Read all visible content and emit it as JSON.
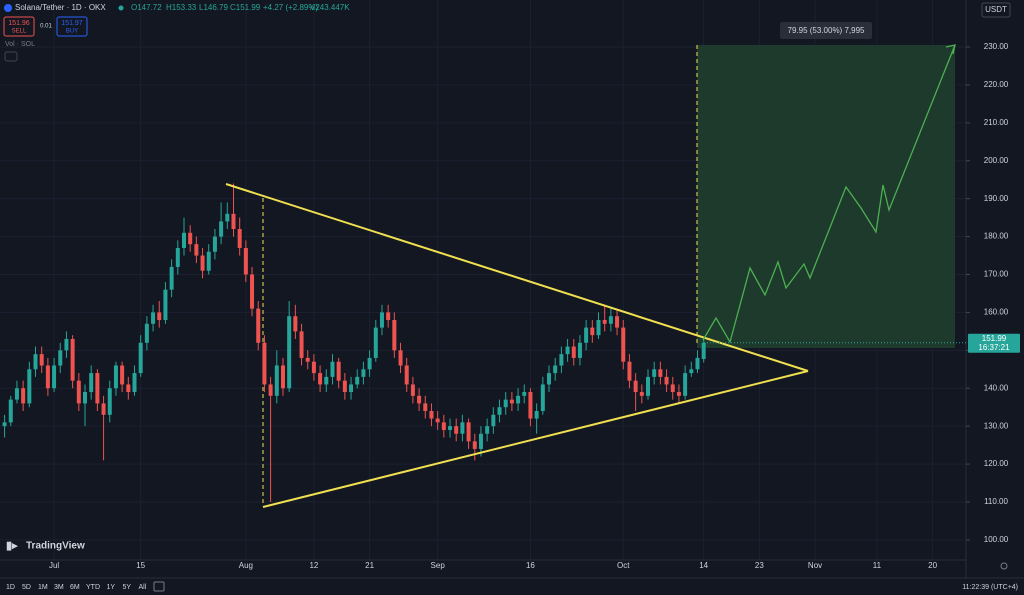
{
  "header": {
    "symbol": "Solana/Tether · 1D · OKX",
    "open": "O147.72",
    "high": "H153.33",
    "low": "L146.79",
    "close": "C151.99",
    "change": "+4.27 (+2.89%)",
    "volume": "V243.447K",
    "sell_price": "151.96",
    "sell": "SELL",
    "spread": "0.01",
    "buy_price": "151.97",
    "buy": "BUY",
    "indicator": "Vol · SOL",
    "currency": "USDT"
  },
  "annotation": {
    "measure": "79.95 (53.00%) 7,995"
  },
  "branding": "TradingView",
  "toolbar": {
    "ranges": [
      "1D",
      "5D",
      "1M",
      "3M",
      "6M",
      "YTD",
      "1Y",
      "5Y",
      "All"
    ],
    "clock": "11:22:39 (UTC+4)"
  },
  "chart_data": {
    "type": "candlestick",
    "up_color": "#26a69a",
    "down_color": "#ef5350",
    "x": [
      -8,
      -7,
      -6,
      -5,
      -4,
      -3,
      -2,
      -1,
      0,
      1,
      2,
      3,
      4,
      5,
      6,
      7,
      8,
      9,
      10,
      11,
      12,
      13,
      14,
      15,
      16,
      17,
      18,
      19,
      20,
      21,
      22,
      23,
      24,
      25,
      26,
      27,
      28,
      29,
      30,
      31,
      32,
      33,
      34,
      35,
      36,
      37,
      38,
      39,
      40,
      41,
      42,
      43,
      44,
      45,
      46,
      47,
      48,
      49,
      50,
      51,
      52,
      53,
      54,
      55,
      56,
      57,
      58,
      59,
      60,
      61,
      62,
      63,
      64,
      65,
      66,
      67,
      68,
      69,
      70,
      71,
      72,
      73,
      74,
      75,
      76,
      77,
      78,
      79,
      80,
      81,
      82,
      83,
      84,
      85,
      86,
      87,
      88,
      89,
      90,
      91,
      92,
      93,
      94,
      95,
      96,
      97,
      98,
      99,
      100,
      101,
      102,
      103,
      104,
      105
    ],
    "open": [
      130,
      131,
      137,
      140,
      136,
      145,
      149,
      146,
      140,
      146,
      150,
      153,
      142,
      136,
      139,
      144,
      136,
      133,
      140,
      146,
      141,
      139,
      144,
      152,
      157,
      160,
      158,
      166,
      172,
      177,
      181,
      178,
      175,
      171,
      176,
      180,
      184,
      186,
      182,
      177,
      170,
      161,
      152,
      141,
      138,
      146,
      140,
      159,
      155,
      148,
      147,
      144,
      141,
      143,
      147,
      142,
      139,
      141,
      143,
      145,
      148,
      156,
      160,
      158,
      150,
      146,
      141,
      138,
      136,
      134,
      132,
      131,
      129,
      130,
      128,
      131,
      126,
      124,
      128,
      130,
      133,
      135,
      137,
      136,
      138,
      139,
      132,
      134,
      141,
      144,
      146,
      149,
      151,
      148,
      152,
      156,
      154,
      158,
      157,
      159,
      156,
      147,
      142,
      139,
      138,
      143,
      145,
      143,
      141,
      139,
      138,
      144,
      145,
      147.72
    ],
    "high": [
      133,
      138,
      142,
      142,
      147,
      151,
      151,
      148,
      148,
      152,
      155,
      154,
      144,
      141,
      146,
      145,
      138,
      142,
      147,
      147,
      143,
      146,
      154,
      159,
      162,
      163,
      168,
      174,
      179,
      185,
      183,
      180,
      177,
      178,
      182,
      189,
      189,
      194,
      185,
      179,
      172,
      163,
      154,
      143,
      150,
      148,
      163,
      162,
      157,
      150,
      149,
      146,
      145,
      149,
      148,
      144,
      143,
      145,
      147,
      150,
      158,
      162,
      162,
      160,
      152,
      148,
      143,
      140,
      138,
      136,
      134,
      133,
      132,
      132,
      133,
      132,
      128,
      130,
      132,
      135,
      137,
      139,
      139,
      140,
      141,
      140,
      136,
      143,
      146,
      148,
      151,
      153,
      153,
      154,
      158,
      158,
      160,
      162,
      161,
      161,
      158,
      149,
      144,
      141,
      145,
      147,
      147,
      145,
      143,
      141,
      146,
      147,
      150,
      153.33
    ],
    "low": [
      127,
      130,
      136,
      134,
      135,
      143,
      144,
      138,
      139,
      144,
      148,
      140,
      134,
      130,
      137,
      134,
      121,
      131,
      138,
      139,
      137,
      138,
      143,
      150,
      155,
      156,
      157,
      164,
      170,
      175,
      176,
      173,
      169,
      170,
      174,
      178,
      182,
      180,
      175,
      168,
      159,
      150,
      139,
      110,
      136,
      138,
      139,
      153,
      146,
      145,
      142,
      139,
      139,
      141,
      140,
      137,
      137,
      140,
      141,
      143,
      147,
      154,
      156,
      148,
      144,
      139,
      136,
      134,
      132,
      130,
      129,
      127,
      127,
      126,
      126,
      124,
      121,
      122,
      126,
      128,
      131,
      133,
      134,
      134,
      136,
      130,
      128,
      133,
      139,
      142,
      144,
      147,
      146,
      146,
      150,
      152,
      153,
      155,
      155,
      154,
      145,
      140,
      134,
      136,
      137,
      141,
      141,
      139,
      137,
      136,
      137,
      143,
      144,
      146.79
    ],
    "close": [
      131,
      137,
      140,
      136,
      145,
      149,
      146,
      140,
      146,
      150,
      153,
      142,
      136,
      139,
      144,
      136,
      133,
      140,
      146,
      141,
      139,
      144,
      152,
      157,
      160,
      158,
      166,
      172,
      177,
      181,
      178,
      175,
      171,
      176,
      180,
      184,
      186,
      182,
      177,
      170,
      161,
      152,
      141,
      138,
      146,
      140,
      159,
      155,
      148,
      147,
      144,
      141,
      143,
      147,
      142,
      139,
      141,
      143,
      145,
      148,
      156,
      160,
      158,
      150,
      146,
      141,
      138,
      136,
      134,
      132,
      131,
      129,
      130,
      128,
      131,
      126,
      124,
      128,
      130,
      133,
      135,
      137,
      136,
      138,
      139,
      132,
      134,
      141,
      144,
      146,
      149,
      151,
      148,
      152,
      156,
      154,
      158,
      157,
      159,
      156,
      147,
      142,
      139,
      138,
      143,
      145,
      143,
      141,
      139,
      138,
      144,
      145,
      148,
      151.99
    ],
    "xlim": [
      -8.74,
      147.4
    ],
    "xticks": [
      {
        "value": 0,
        "label": "Jul"
      },
      {
        "value": 14,
        "label": "15"
      },
      {
        "value": 31,
        "label": "Aug"
      },
      {
        "value": 42,
        "label": "12"
      },
      {
        "value": 51,
        "label": "21"
      },
      {
        "value": 62,
        "label": "Sep"
      },
      {
        "value": 77,
        "label": "16"
      },
      {
        "value": 92,
        "label": "Oct"
      },
      {
        "value": 105,
        "label": "14"
      },
      {
        "value": 114,
        "label": "23"
      },
      {
        "value": 123,
        "label": "Nov"
      },
      {
        "value": 133,
        "label": "11"
      },
      {
        "value": 142,
        "label": "20"
      }
    ],
    "ylim": [
      94.7,
      242.4
    ],
    "yticks": [
      {
        "value": 100,
        "label": "100.00"
      },
      {
        "value": 110,
        "label": "110.00"
      },
      {
        "value": 120,
        "label": "120.00"
      },
      {
        "value": 130,
        "label": "130.00"
      },
      {
        "value": 140,
        "label": "140.00"
      },
      {
        "value": 150,
        "label": "150.00"
      },
      {
        "value": 160,
        "label": "160.00"
      },
      {
        "value": 170,
        "label": "170.00"
      },
      {
        "value": 180,
        "label": "180.00"
      },
      {
        "value": 190,
        "label": "190.00"
      },
      {
        "value": 200,
        "label": "200.00"
      },
      {
        "value": 210,
        "label": "210.00"
      },
      {
        "value": 220,
        "label": "220.00"
      },
      {
        "value": 230,
        "label": "230.00"
      }
    ],
    "last_price": {
      "value": 151.99,
      "label": "151.99",
      "countdown": "16:37:21"
    }
  }
}
